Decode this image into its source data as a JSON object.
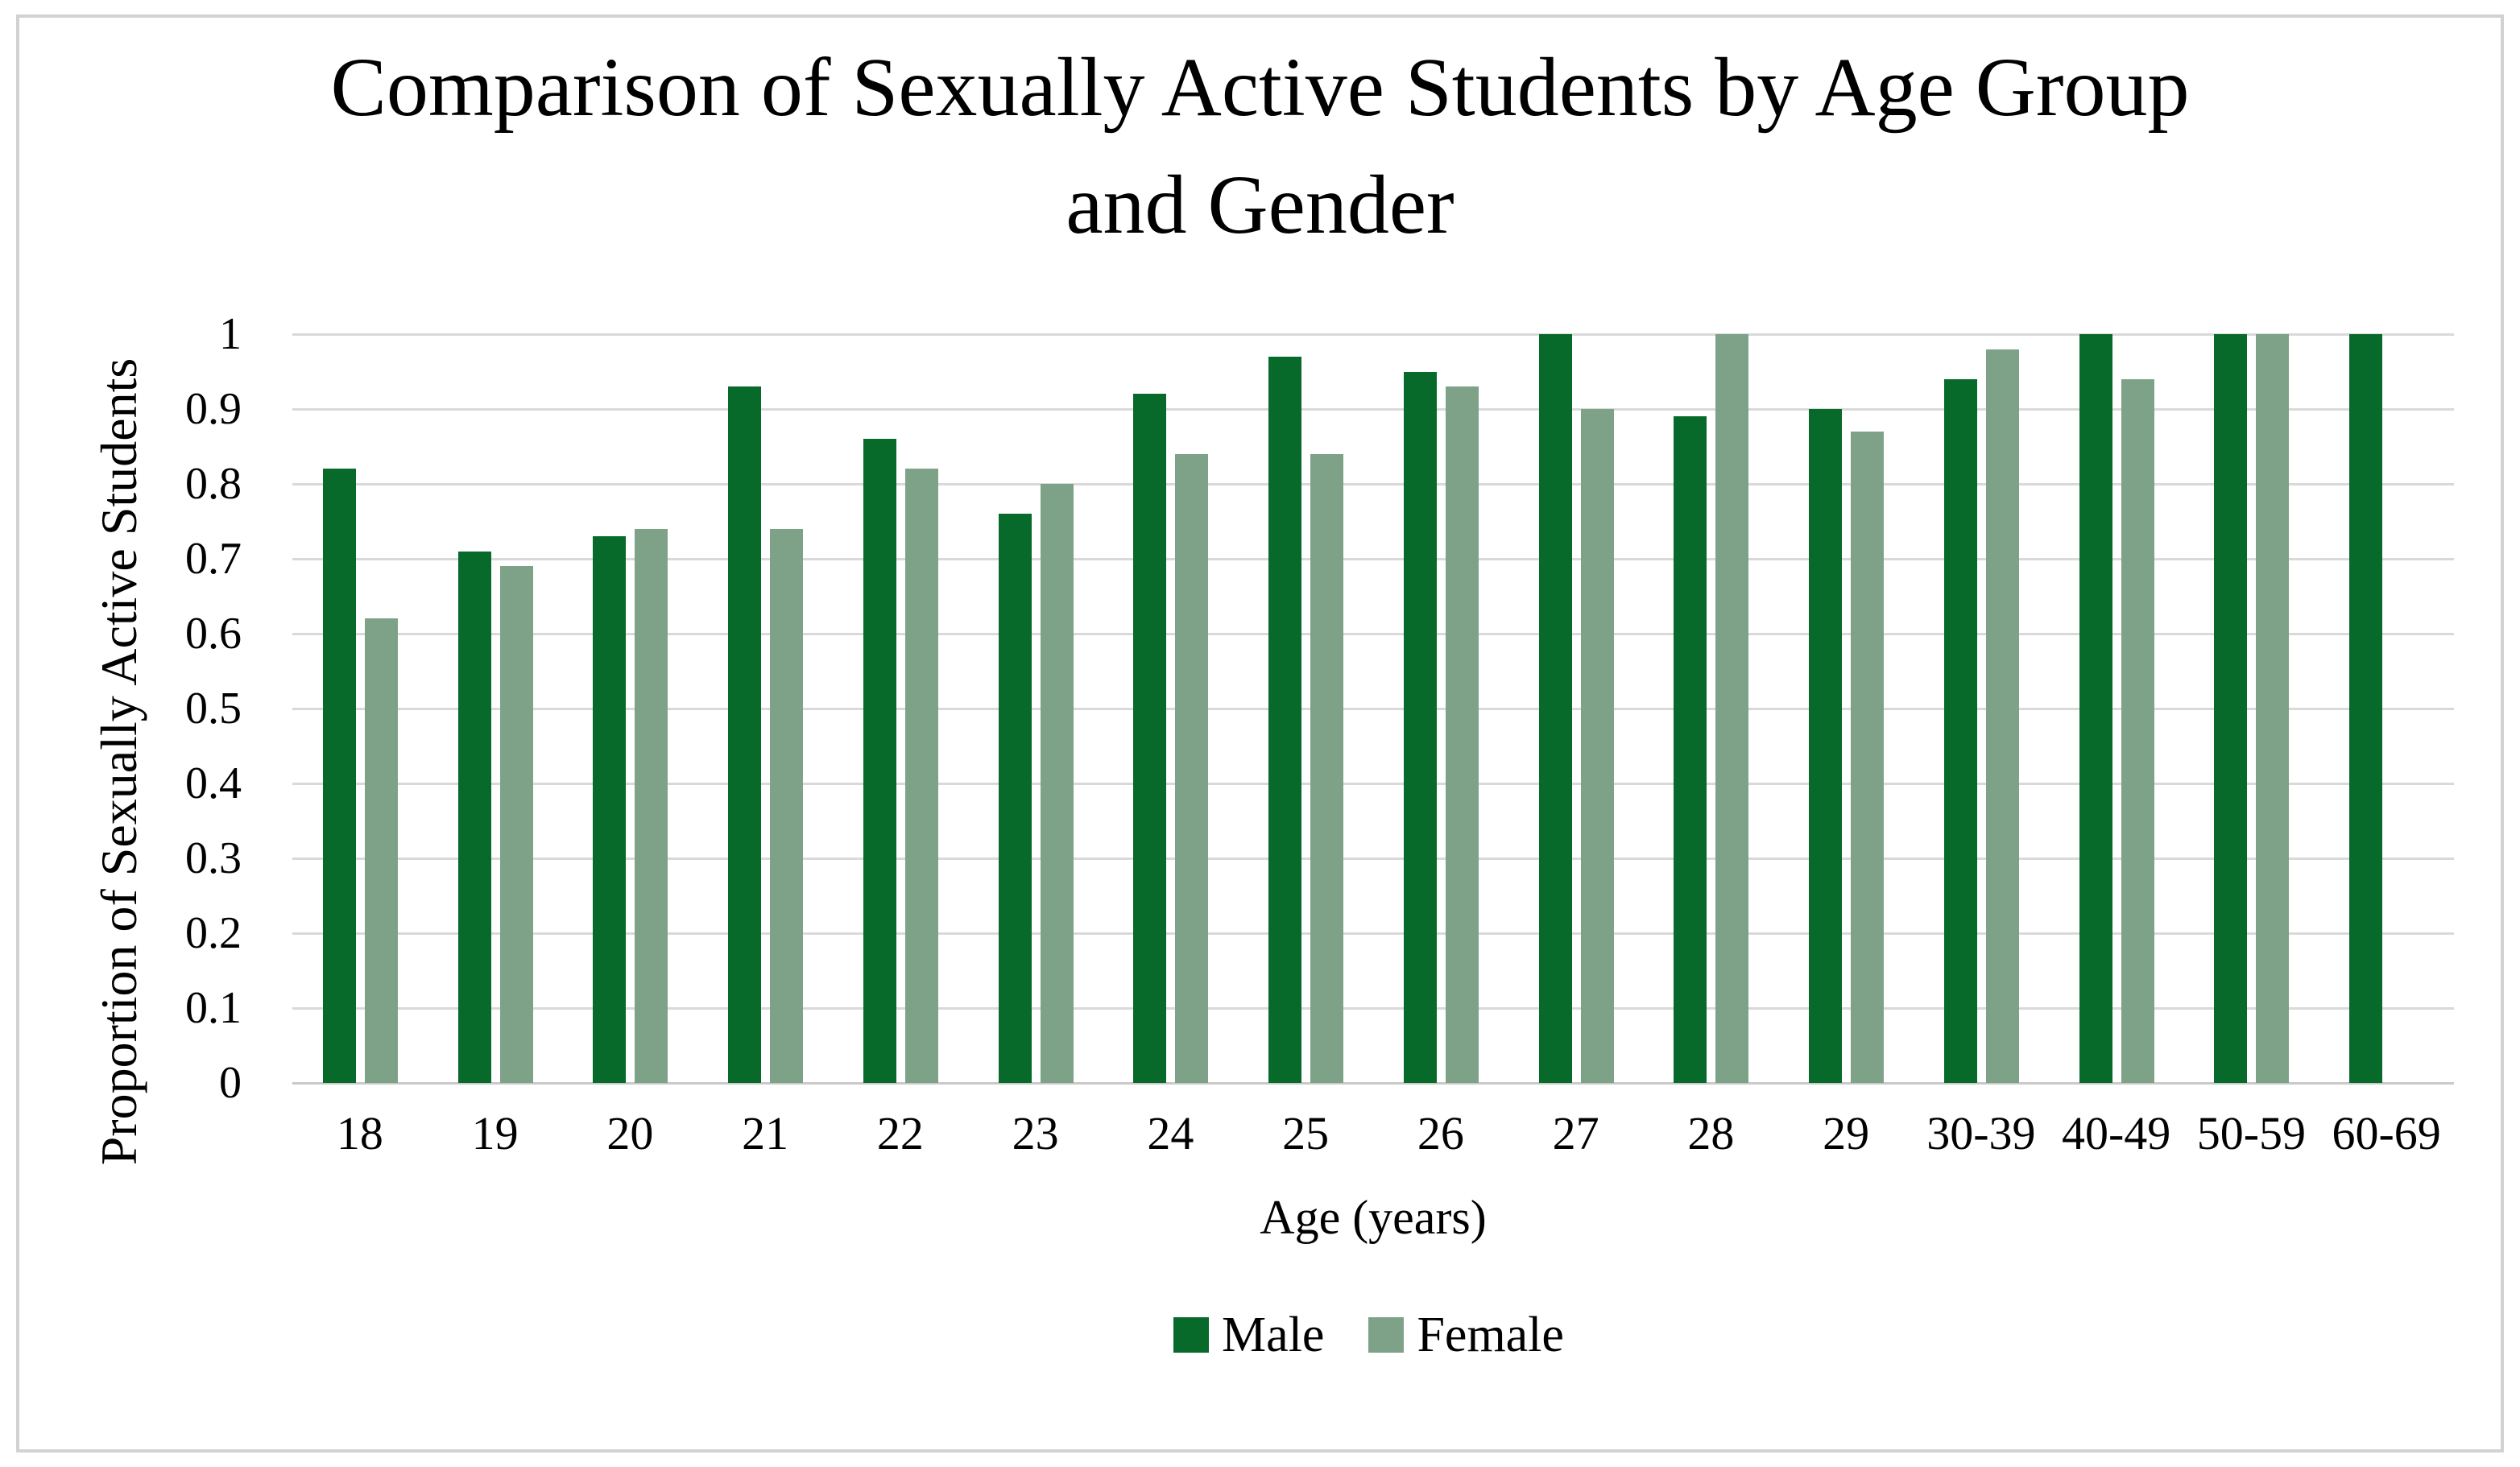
{
  "chart_data": {
    "type": "bar",
    "title": "Comparison of Sexually Active Students by Age Group and Gender",
    "title_lines": [
      "Comparison of Sexually Active Students by Age Group",
      "and Gender"
    ],
    "xlabel": "Age (years)",
    "ylabel": "Proportion of Sexually Active Students",
    "categories": [
      "18",
      "19",
      "20",
      "21",
      "22",
      "23",
      "24",
      "25",
      "26",
      "27",
      "28",
      "29",
      "30-39",
      "40-49",
      "50-59",
      "60-69"
    ],
    "series": [
      {
        "name": "Male",
        "color": "#076a2a",
        "values": [
          0.82,
          0.71,
          0.73,
          0.93,
          0.86,
          0.76,
          0.92,
          0.97,
          0.95,
          1,
          0.89,
          0.9,
          0.94,
          1,
          1,
          1
        ]
      },
      {
        "name": "Female",
        "color": "#7ea287",
        "values": [
          0.62,
          0.69,
          0.74,
          0.74,
          0.82,
          0.8,
          0.84,
          0.84,
          0.93,
          0.9,
          1,
          0.87,
          0.98,
          0.94,
          1,
          null
        ]
      }
    ],
    "ylim": [
      0,
      1
    ],
    "ytick_labels": [
      "0",
      "0.1",
      "0.2",
      "0.3",
      "0.4",
      "0.5",
      "0.6",
      "0.7",
      "0.8",
      "0.9",
      "1"
    ],
    "grid": true,
    "legend_position": "bottom",
    "colors": {
      "gridline": "#d9d9d9",
      "axis_line": "#c9c9c9",
      "frame_border": "#d2d2d2",
      "text": "#000000",
      "background": "#ffffff"
    }
  }
}
